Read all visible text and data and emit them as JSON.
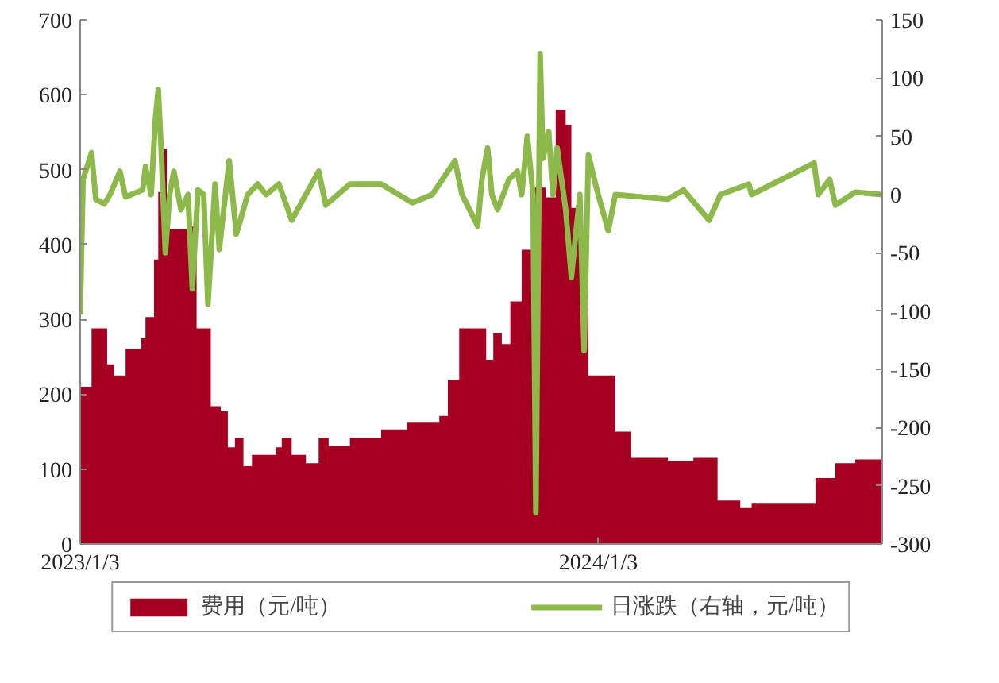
{
  "chart_data": {
    "type": "line",
    "xlim": [
      "2023-01-03",
      "2024-07-21"
    ],
    "xticks": [
      {
        "value": "2023-01-03",
        "label": "2023/1/3"
      },
      {
        "value": "2024-01-03",
        "label": "2024/1/3"
      }
    ],
    "ylim": [
      0,
      700
    ],
    "yticks": [
      0,
      100,
      200,
      300,
      400,
      500,
      600,
      700
    ],
    "y2lim": [
      -300,
      150
    ],
    "y2ticks": [
      -300,
      -250,
      -200,
      -150,
      -100,
      -50,
      0,
      50,
      100,
      150
    ],
    "grid": false,
    "legend": "bottom",
    "series": [
      {
        "name": "费用（元/吨）",
        "type": "area",
        "color": "#a50021",
        "x": [
          "2023-01-03",
          "2023-01-11",
          "2023-01-18",
          "2023-01-22",
          "2023-01-27",
          "2023-02-04",
          "2023-02-15",
          "2023-02-18",
          "2023-02-24",
          "2023-02-27",
          "2023-03-02",
          "2023-03-05",
          "2023-03-10",
          "2023-03-20",
          "2023-03-26",
          "2023-04-01",
          "2023-04-05",
          "2023-04-12",
          "2023-04-17",
          "2023-04-22",
          "2023-04-28",
          "2023-05-04",
          "2023-05-21",
          "2023-05-25",
          "2023-06-01",
          "2023-06-11",
          "2023-06-20",
          "2023-06-27",
          "2023-07-12",
          "2023-08-03",
          "2023-08-21",
          "2023-09-13",
          "2023-09-19",
          "2023-09-27",
          "2023-10-02",
          "2023-10-11",
          "2023-10-16",
          "2023-10-21",
          "2023-10-27",
          "2023-11-02",
          "2023-11-10",
          "2023-11-18",
          "2023-11-27",
          "2023-12-04",
          "2023-12-11",
          "2023-12-15",
          "2023-12-22",
          "2023-12-27",
          "2024-01-06",
          "2024-01-15",
          "2024-01-26",
          "2024-02-21",
          "2024-03-10",
          "2024-03-23",
          "2024-03-27",
          "2024-04-12",
          "2024-04-20",
          "2024-05-04",
          "2024-05-30",
          "2024-06-04",
          "2024-06-18",
          "2024-07-02",
          "2024-07-21"
        ],
        "values": [
          210,
          288,
          288,
          240,
          225,
          261,
          275,
          303,
          380,
          470,
          528,
          421,
          421,
          424,
          288,
          288,
          184,
          177,
          129,
          142,
          104,
          119,
          129,
          142,
          119,
          108,
          142,
          131,
          142,
          153,
          163,
          171,
          219,
          288,
          288,
          288,
          246,
          282,
          267,
          324,
          393,
          476,
          463,
          580,
          560,
          449,
          338,
          225,
          225,
          150,
          115,
          111,
          115,
          115,
          58,
          48,
          55,
          55,
          55,
          88,
          108,
          113,
          113
        ]
      },
      {
        "name": "日涨跌（右轴，元/吨）",
        "axis": "y2",
        "color": "#8db84a",
        "x": [
          "2023-01-03",
          "2023-01-05",
          "2023-01-11",
          "2023-01-14",
          "2023-01-20",
          "2023-01-24",
          "2023-01-31",
          "2023-02-04",
          "2023-02-16",
          "2023-02-18",
          "2023-02-22",
          "2023-02-25",
          "2023-02-27",
          "2023-03-01",
          "2023-03-04",
          "2023-03-07",
          "2023-03-10",
          "2023-03-15",
          "2023-03-20",
          "2023-03-23",
          "2023-03-27",
          "2023-03-31",
          "2023-04-03",
          "2023-04-08",
          "2023-04-11",
          "2023-04-18",
          "2023-04-23",
          "2023-05-01",
          "2023-05-08",
          "2023-05-14",
          "2023-05-23",
          "2023-06-01",
          "2023-06-20",
          "2023-06-25",
          "2023-07-12",
          "2023-08-03",
          "2023-08-25",
          "2023-09-08",
          "2023-09-24",
          "2023-09-29",
          "2023-10-10",
          "2023-10-13",
          "2023-10-17",
          "2023-10-20",
          "2023-10-24",
          "2023-11-01",
          "2023-11-07",
          "2023-11-10",
          "2023-11-14",
          "2023-11-18",
          "2023-11-20",
          "2023-11-23",
          "2023-11-25",
          "2023-11-29",
          "2023-12-02",
          "2023-12-05",
          "2023-12-11",
          "2023-12-15",
          "2023-12-21",
          "2023-12-24",
          "2023-12-27",
          "2024-01-02",
          "2024-01-10",
          "2024-01-15",
          "2024-02-21",
          "2024-03-03",
          "2024-03-21",
          "2024-03-29",
          "2024-04-18",
          "2024-04-20",
          "2024-06-03",
          "2024-06-06",
          "2024-06-14",
          "2024-06-18",
          "2024-07-02",
          "2024-07-21"
        ],
        "values": [
          -103,
          13,
          36,
          -4,
          -8,
          0,
          20,
          -2,
          4,
          24,
          0,
          65,
          90,
          40,
          -50,
          0,
          20,
          -13,
          0,
          -81,
          4,
          0,
          -94,
          9,
          -47,
          29,
          -34,
          0,
          9,
          0,
          9,
          -22,
          20,
          -9,
          9,
          9,
          -7,
          0,
          29,
          0,
          -27,
          13,
          40,
          0,
          -13,
          13,
          20,
          0,
          50,
          0,
          -273,
          121,
          31,
          54,
          0,
          40,
          -13,
          -71,
          0,
          -134,
          34,
          4,
          -31,
          0,
          -4,
          4,
          -22,
          0,
          9,
          0,
          27,
          0,
          13,
          -9,
          2,
          0
        ]
      }
    ]
  }
}
